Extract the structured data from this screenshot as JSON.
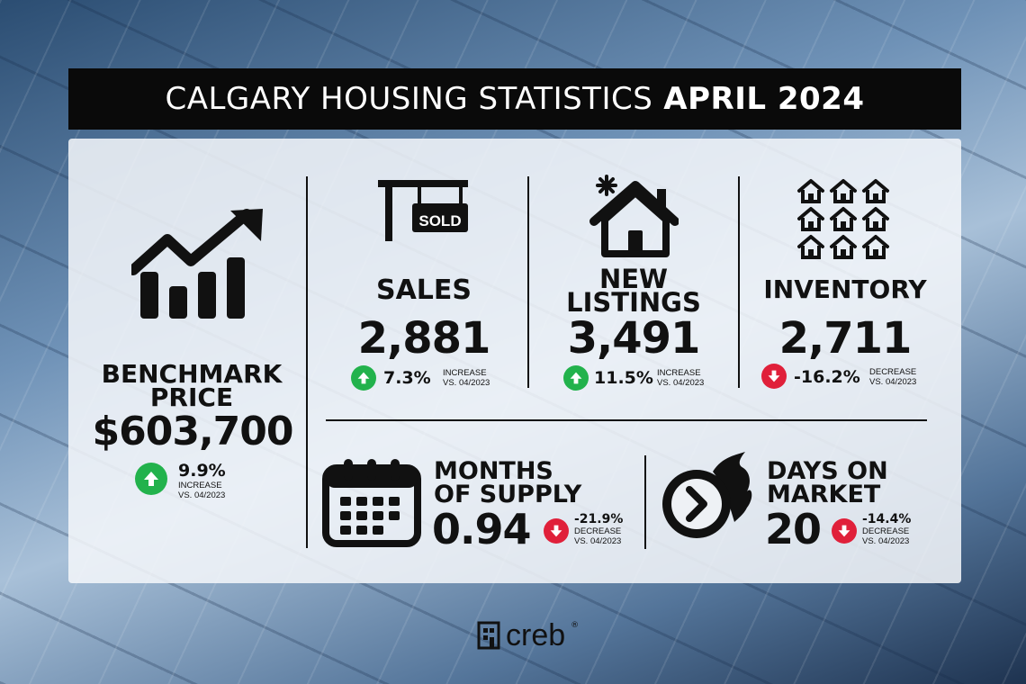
{
  "header": {
    "title_light": "CALGARY HOUSING STATISTICS",
    "title_bold": "APRIL 2024"
  },
  "benchmark": {
    "label_line1": "BENCHMARK",
    "label_line2": "PRICE",
    "value": "$603,700",
    "change": "9.9%",
    "direction": "up",
    "note_line1": "INCREASE",
    "note_line2": "VS. 04/2023",
    "icon": "growth-chart-icon"
  },
  "sales": {
    "label": "SALES",
    "value": "2,881",
    "change": "7.3%",
    "direction": "up",
    "note_line1": "INCREASE",
    "note_line2": "VS. 04/2023",
    "sign_text": "SOLD",
    "icon": "sold-sign-icon"
  },
  "new_listings": {
    "label_line1": "NEW",
    "label_line2": "LISTINGS",
    "value": "3,491",
    "change": "11.5%",
    "direction": "up",
    "note_line1": "INCREASE",
    "note_line2": "VS. 04/2023",
    "icon": "new-house-icon"
  },
  "inventory": {
    "label": "INVENTORY",
    "value": "2,711",
    "change": "-16.2%",
    "direction": "down",
    "note_line1": "DECREASE",
    "note_line2": "VS. 04/2023",
    "icon": "houses-grid-icon"
  },
  "months_supply": {
    "label_line1": "MONTHS",
    "label_line2": "OF SUPPLY",
    "value": "0.94",
    "change": "-21.9%",
    "direction": "down",
    "note_line1": "DECREASE",
    "note_line2": "VS. 04/2023",
    "icon": "calendar-icon"
  },
  "days_on_market": {
    "label_line1": "DAYS ON",
    "label_line2": "MARKET",
    "value": "20",
    "change": "-14.4%",
    "direction": "down",
    "note_line1": "DECREASE",
    "note_line2": "VS. 04/2023",
    "icon": "fast-clock-icon"
  },
  "footer": {
    "brand": "creb",
    "registered": "®",
    "icon": "creb-logo-icon"
  },
  "colors": {
    "up": "#22b24c",
    "down": "#e0203a",
    "text": "#111111",
    "title_bg": "#0a0a0a"
  }
}
